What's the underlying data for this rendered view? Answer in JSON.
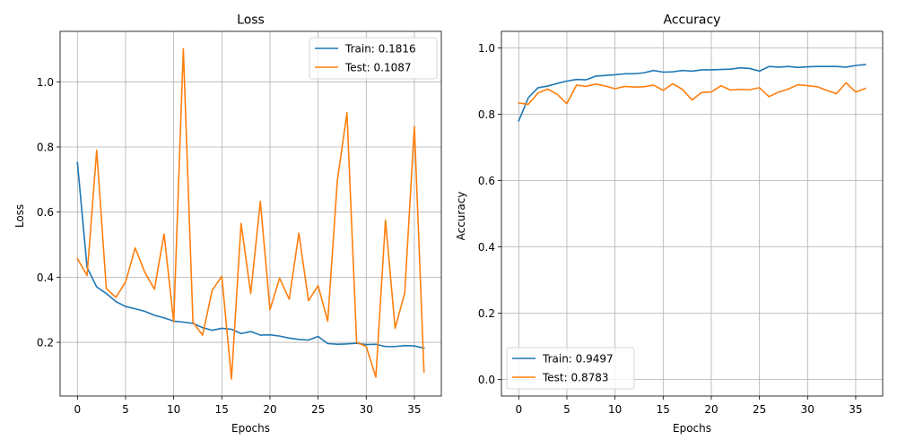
{
  "chart_data": [
    {
      "type": "line",
      "title": "Loss",
      "xlabel": "Epochs",
      "ylabel": "Loss",
      "xlim": [
        -1.8,
        37.8
      ],
      "ylim": [
        0.035,
        1.155
      ],
      "xticks": [
        0,
        5,
        10,
        15,
        20,
        25,
        30,
        35
      ],
      "yticks": [
        0.2,
        0.4,
        0.6,
        0.8,
        1.0
      ],
      "ytick_labels": [
        "0.2",
        "0.4",
        "0.6",
        "0.8",
        "1.0"
      ],
      "grid": true,
      "legend_position": "top-right",
      "x": [
        0,
        1,
        2,
        3,
        4,
        5,
        6,
        7,
        8,
        9,
        10,
        11,
        12,
        13,
        14,
        15,
        16,
        17,
        18,
        19,
        20,
        21,
        22,
        23,
        24,
        25,
        26,
        27,
        28,
        29,
        30,
        31,
        32,
        33,
        34,
        35,
        36
      ],
      "series": [
        {
          "name": "Train: 0.1816",
          "color": "#1f77b4",
          "values": [
            0.752,
            0.43,
            0.37,
            0.35,
            0.325,
            0.31,
            0.303,
            0.295,
            0.283,
            0.275,
            0.265,
            0.262,
            0.258,
            0.245,
            0.237,
            0.243,
            0.24,
            0.227,
            0.233,
            0.222,
            0.223,
            0.219,
            0.213,
            0.209,
            0.207,
            0.218,
            0.196,
            0.194,
            0.195,
            0.197,
            0.193,
            0.194,
            0.187,
            0.187,
            0.19,
            0.189,
            0.182
          ]
        },
        {
          "name": "Test: 0.1087",
          "color": "#ff7f0e",
          "values": [
            0.457,
            0.405,
            0.79,
            0.365,
            0.338,
            0.385,
            0.49,
            0.415,
            0.363,
            0.533,
            0.262,
            1.102,
            0.262,
            0.222,
            0.36,
            0.403,
            0.087,
            0.565,
            0.35,
            0.633,
            0.3,
            0.397,
            0.332,
            0.535,
            0.328,
            0.374,
            0.265,
            0.697,
            0.905,
            0.2,
            0.187,
            0.093,
            0.575,
            0.243,
            0.352,
            0.863,
            0.109
          ]
        }
      ]
    },
    {
      "type": "line",
      "title": "Accuracy",
      "xlabel": "Epochs",
      "ylabel": "Accuracy",
      "xlim": [
        -1.8,
        37.8
      ],
      "ylim": [
        -0.05,
        1.05
      ],
      "xticks": [
        0,
        5,
        10,
        15,
        20,
        25,
        30,
        35
      ],
      "yticks": [
        0.0,
        0.2,
        0.4,
        0.6,
        0.8,
        1.0
      ],
      "ytick_labels": [
        "0.0",
        "0.2",
        "0.4",
        "0.6",
        "0.8",
        "1.0"
      ],
      "grid": true,
      "legend_position": "bottom-left",
      "x": [
        0,
        1,
        2,
        3,
        4,
        5,
        6,
        7,
        8,
        9,
        10,
        11,
        12,
        13,
        14,
        15,
        16,
        17,
        18,
        19,
        20,
        21,
        22,
        23,
        24,
        25,
        26,
        27,
        28,
        29,
        30,
        31,
        32,
        33,
        34,
        35,
        36
      ],
      "series": [
        {
          "name": "Train: 0.9497",
          "color": "#1f77b4",
          "values": [
            0.78,
            0.85,
            0.88,
            0.885,
            0.893,
            0.9,
            0.905,
            0.904,
            0.915,
            0.917,
            0.919,
            0.922,
            0.922,
            0.925,
            0.932,
            0.927,
            0.928,
            0.932,
            0.93,
            0.934,
            0.934,
            0.935,
            0.936,
            0.94,
            0.938,
            0.93,
            0.944,
            0.942,
            0.944,
            0.941,
            0.943,
            0.944,
            0.944,
            0.944,
            0.942,
            0.947,
            0.95
          ]
        },
        {
          "name": "Test: 0.8783",
          "color": "#ff7f0e",
          "values": [
            0.834,
            0.83,
            0.864,
            0.876,
            0.86,
            0.832,
            0.888,
            0.884,
            0.891,
            0.885,
            0.877,
            0.884,
            0.882,
            0.883,
            0.888,
            0.872,
            0.892,
            0.875,
            0.843,
            0.866,
            0.867,
            0.886,
            0.873,
            0.875,
            0.874,
            0.88,
            0.853,
            0.867,
            0.876,
            0.889,
            0.886,
            0.883,
            0.872,
            0.862,
            0.895,
            0.867,
            0.878
          ]
        }
      ]
    }
  ]
}
